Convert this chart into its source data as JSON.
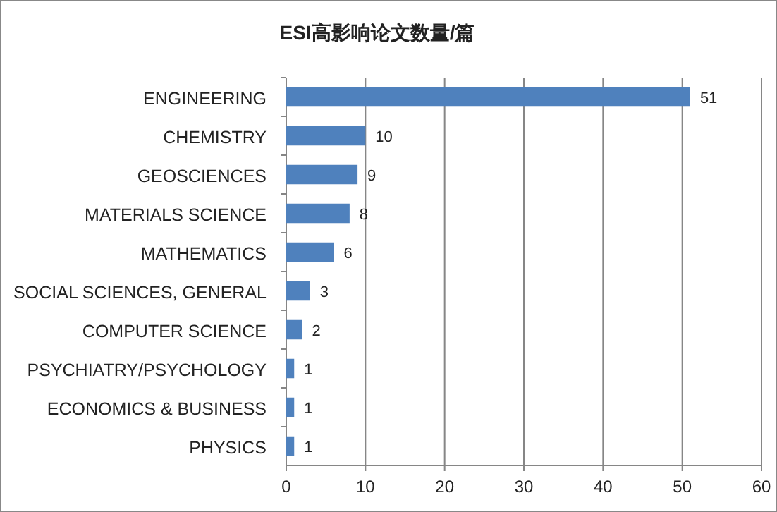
{
  "chart_data": {
    "type": "bar",
    "orientation": "horizontal",
    "title": "ESI高影响论文数量/篇",
    "categories": [
      "ENGINEERING",
      "CHEMISTRY",
      "GEOSCIENCES",
      "MATERIALS SCIENCE",
      "MATHEMATICS",
      "SOCIAL SCIENCES, GENERAL",
      "COMPUTER SCIENCE",
      "PSYCHIATRY/PSYCHOLOGY",
      "ECONOMICS & BUSINESS",
      "PHYSICS"
    ],
    "values": [
      51,
      10,
      9,
      8,
      6,
      3,
      2,
      1,
      1,
      1
    ],
    "color": "#4f81bd",
    "xlim": [
      0,
      60
    ],
    "xticks": [
      0,
      10,
      20,
      30,
      40,
      50,
      60
    ],
    "grid": "x",
    "data_labels": true
  }
}
